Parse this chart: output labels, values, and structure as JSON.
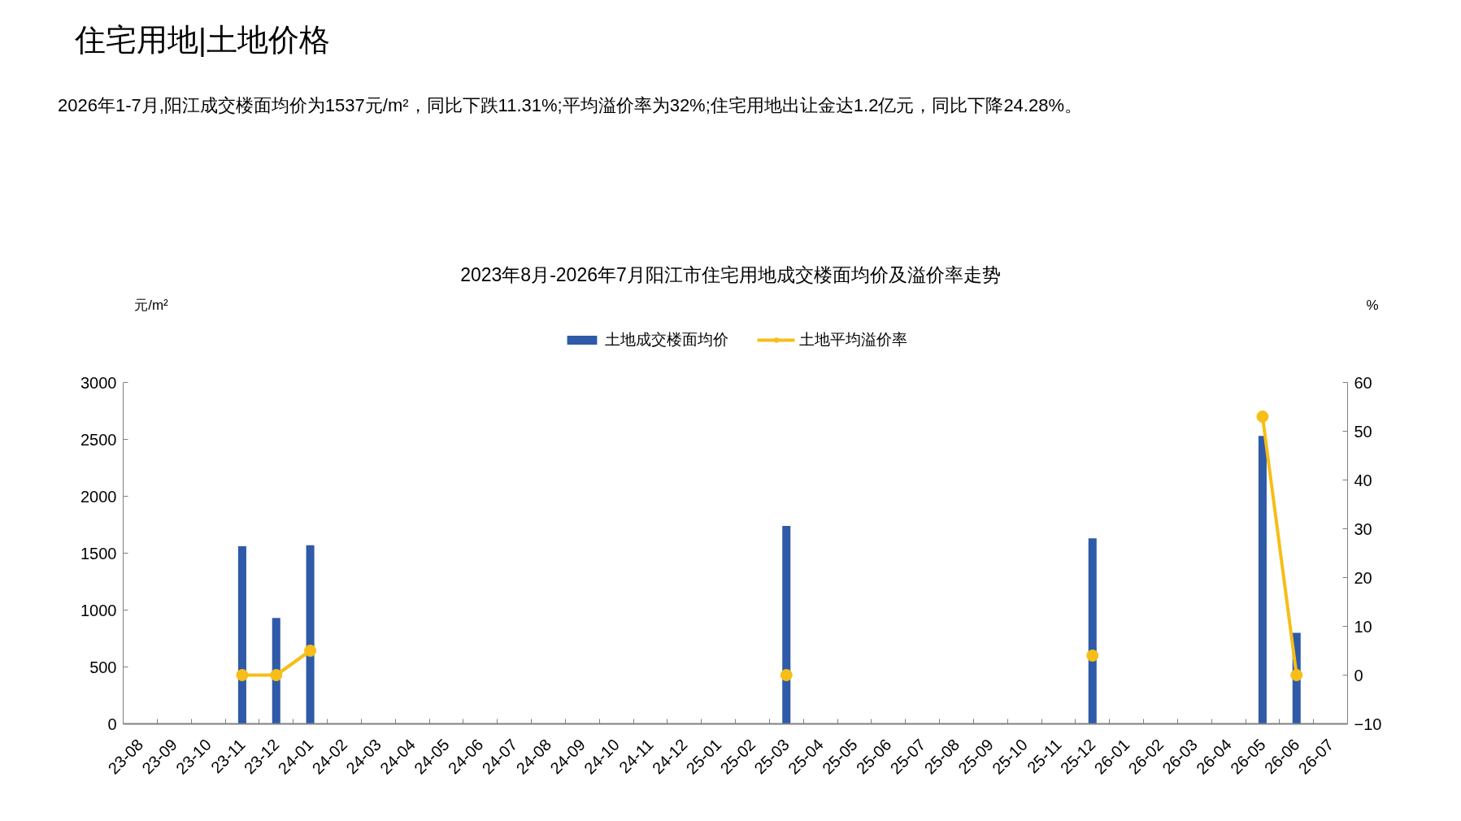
{
  "chart_data": {
    "type": "bar",
    "title": "2023年8月-2026年7月阳江市住宅用地成交楼面均价及溢价率走势",
    "ylabel": "元/m²",
    "y2label": "%",
    "annotations": [
      "住宅用地|土地价格",
      "2026年1-7月,阳江成交楼面均价为1537元/m²，同比下跌11.31%;平均溢价率为32%;住宅用地出让金达1.2亿元，同比下降24.28%。"
    ],
    "categories": [
      "23-08",
      "23-09",
      "23-10",
      "23-11",
      "23-12",
      "24-01",
      "24-02",
      "24-03",
      "24-04",
      "24-05",
      "24-06",
      "24-07",
      "24-08",
      "24-09",
      "24-10",
      "24-11",
      "24-12",
      "25-01",
      "25-02",
      "25-03",
      "25-04",
      "25-05",
      "25-06",
      "25-07",
      "25-08",
      "25-09",
      "25-10",
      "25-11",
      "25-12",
      "26-01",
      "26-02",
      "26-03",
      "26-04",
      "26-05",
      "26-06",
      "26-07"
    ],
    "series": [
      {
        "name": "土地成交楼面均价",
        "color": "#2e5aa8",
        "values": [
          null,
          null,
          null,
          1560,
          930,
          1570,
          null,
          null,
          null,
          null,
          null,
          null,
          null,
          null,
          null,
          null,
          null,
          null,
          null,
          1740,
          null,
          null,
          null,
          null,
          null,
          null,
          null,
          null,
          1630,
          null,
          null,
          null,
          null,
          2530,
          800,
          null
        ]
      },
      {
        "name": "土地平均溢价率",
        "type": "line",
        "axis": "y2",
        "color": "#f6be16",
        "values": [
          null,
          null,
          null,
          0,
          0,
          5,
          null,
          null,
          null,
          null,
          null,
          null,
          null,
          null,
          null,
          null,
          null,
          null,
          null,
          0,
          null,
          null,
          null,
          null,
          null,
          null,
          null,
          null,
          4,
          null,
          null,
          null,
          null,
          53,
          0,
          null
        ]
      }
    ],
    "ylim": [
      0,
      3000
    ],
    "yticks": [
      0,
      500,
      1000,
      1500,
      2000,
      2500,
      3000
    ],
    "y2lim": [
      -10,
      60
    ],
    "y2ticks": [
      -10,
      0,
      10,
      20,
      30,
      40,
      50,
      60
    ],
    "grid": false,
    "legend": "top",
    "marker": "circle"
  }
}
